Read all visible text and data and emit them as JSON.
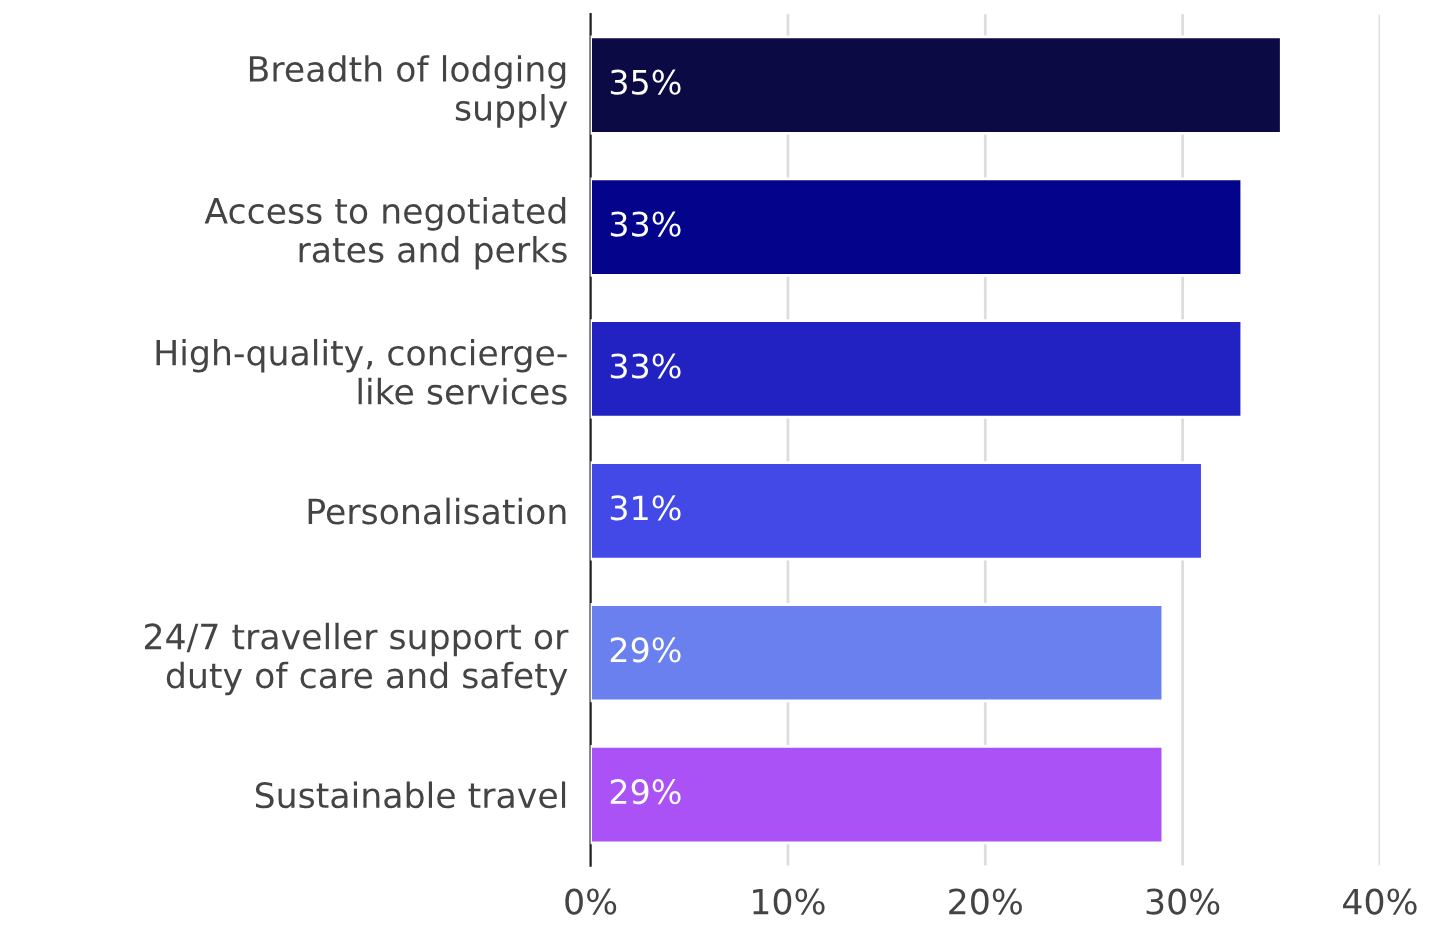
{
  "chart_data": {
    "type": "bar",
    "orientation": "horizontal",
    "categories": [
      "Breadth of lodging\nsupply",
      "Access to negotiated\nrates and perks",
      "High-quality, concierge-\nlike services",
      "Personalisation",
      "24/7 traveller support or\nduty of care and safety",
      "Sustainable travel"
    ],
    "values": [
      35,
      33,
      33,
      31,
      29,
      29
    ],
    "value_labels": [
      "35%",
      "33%",
      "33%",
      "31%",
      "29%",
      "29%"
    ],
    "colors": [
      "#0b0a45",
      "#03038c",
      "#2222c2",
      "#4249e6",
      "#6a80ee",
      "#aa52f6"
    ],
    "xlim": [
      0,
      40
    ],
    "xticks": [
      {
        "value": 0,
        "label": "0%"
      },
      {
        "value": 10,
        "label": "10%"
      },
      {
        "value": 20,
        "label": "20%"
      },
      {
        "value": 30,
        "label": "30%"
      },
      {
        "value": 40,
        "label": "40%"
      }
    ],
    "grid": "x",
    "legend": false
  }
}
